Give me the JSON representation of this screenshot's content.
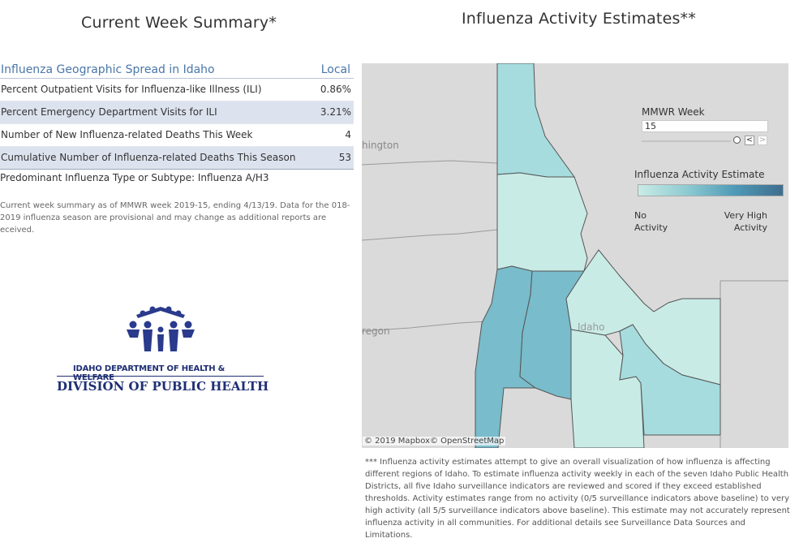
{
  "left": {
    "title": "Current Week Summary*",
    "table": {
      "header": "Influenza Geographic Spread in Idaho",
      "header_value": "Local",
      "rows": [
        {
          "label": "Percent Outpatient Visits for Influenza-like Illness (ILI)",
          "value": "0.86%"
        },
        {
          "label": "Percent Emergency Department Visits for ILI",
          "value": "3.21%"
        },
        {
          "label": "Number of New Influenza-related Deaths This Week",
          "value": "4"
        },
        {
          "label": "Cumulative Number of Influenza-related Deaths This Season",
          "value": "53"
        }
      ]
    },
    "predominant": "Predominant Influenza Type or Subtype: Influenza A/H3",
    "note": "Current week summary as of MMWR week 2019-15, ending 4/13/19. Data for the 018-2019 influenza season are provisional and may change as additional reports are eceived.",
    "logo": {
      "dept": "IDAHO DEPARTMENT OF HEALTH & WELFARE",
      "division": "DIVISION OF PUBLIC HEALTH"
    }
  },
  "right": {
    "title": "Influenza Activity Estimates**",
    "map_labels": {
      "washington": "hington",
      "oregon": "regon",
      "idaho": "Idaho"
    },
    "mmwr": {
      "label": "MMWR Week",
      "value": "15",
      "prev": "<",
      "next": ">"
    },
    "legend": {
      "title": "Influenza Activity Estimate",
      "low": "No Activity",
      "high": "Very High Activity"
    },
    "colors": {
      "no_activity": "#c9ebe6",
      "low": "#a6dcde",
      "moderate": "#8ecbd2",
      "elevated": "#79bccb"
    },
    "attribution": "© 2019 Mapbox© OpenStreetMap",
    "footnote": "*** Influenza activity estimates attempt to give an overall visualization of how influenza is affecting different regions of Idaho. To estimate influenza activity weekly in each of the seven Idaho Public Health Districts, all five Idaho surveillance indicators are reviewed and scored if they exceed established thresholds. Activity estimates range from no activity (0/5 surveillance indicators above baseline) to very high activity (all 5/5 surveillance indicators above baseline). This estimate may not accurately represent influenza activity in all communities. For additional details see Surveillance Data Sources and Limitations."
  }
}
